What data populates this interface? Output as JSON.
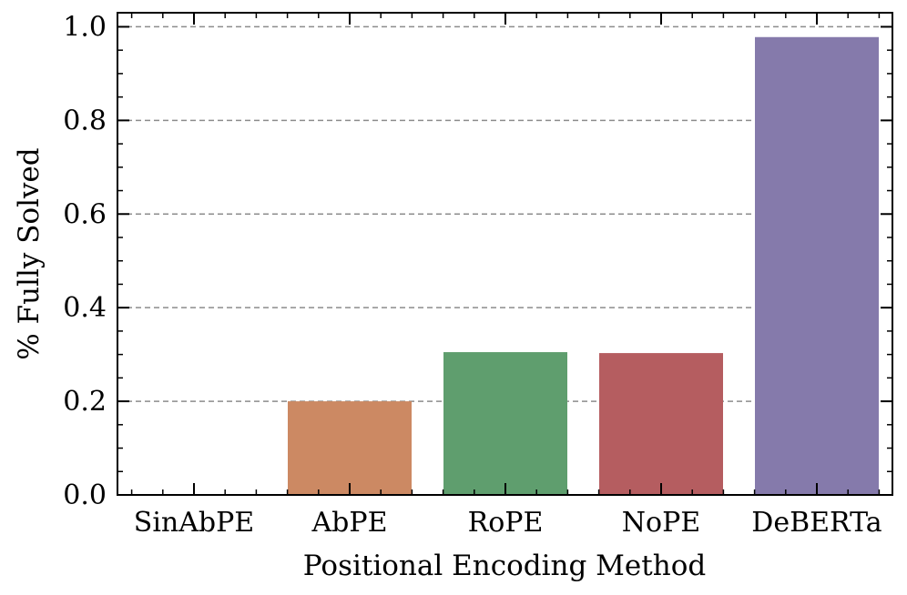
{
  "chart_data": {
    "type": "bar",
    "title": "",
    "xlabel": "Positional Encoding Method",
    "ylabel": "% Fully Solved",
    "categories": [
      "SinAbPE",
      "AbPE",
      "RoPE",
      "NoPE",
      "DeBERTa"
    ],
    "values": [
      0.0,
      0.2,
      0.305,
      0.303,
      0.978
    ],
    "colors": [
      "#4c72b0",
      "#cc8963",
      "#5f9e6e",
      "#b55d60",
      "#857aab"
    ],
    "ylim": [
      0,
      1.03
    ],
    "yticks": [
      0.0,
      0.2,
      0.4,
      0.6,
      0.8,
      1.0
    ],
    "ytick_labels": [
      "0.0",
      "0.2",
      "0.4",
      "0.6",
      "0.8",
      "1.0"
    ],
    "grid": "y-dashed",
    "legend": "none"
  }
}
